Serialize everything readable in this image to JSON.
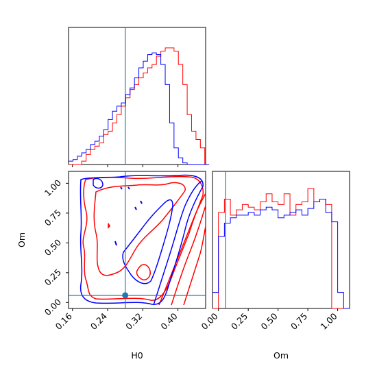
{
  "colors": {
    "series_a": "#ff0000",
    "series_b": "#0000ff",
    "truth": "#1f77b4",
    "axis": "#000000"
  },
  "chart_data": [
    {
      "type": "histogram",
      "panel": "H0 marginal",
      "x": [
        0.151,
        0.161,
        0.171,
        0.181,
        0.191,
        0.201,
        0.211,
        0.221,
        0.231,
        0.241,
        0.251,
        0.261,
        0.271,
        0.281,
        0.291,
        0.301,
        0.311,
        0.321,
        0.331,
        0.341,
        0.351,
        0.361,
        0.371,
        0.381,
        0.391,
        0.401,
        0.411,
        0.421,
        0.431,
        0.441,
        0.451,
        0.461
      ],
      "series": [
        {
          "values": [
            0,
            0,
            0,
            2,
            6,
            9,
            11,
            13,
            18,
            20,
            25,
            30,
            35,
            40,
            45,
            48,
            52,
            55,
            58,
            60,
            65,
            68,
            70,
            70,
            68,
            60,
            48,
            30,
            20,
            15,
            10,
            0
          ]
        },
        {
          "values": [
            2,
            3,
            5,
            7,
            9,
            12,
            14,
            17,
            21,
            27,
            32,
            35,
            37,
            42,
            46,
            52,
            58,
            62,
            66,
            67,
            66,
            60,
            48,
            25,
            10,
            4,
            1,
            0,
            0,
            0,
            0,
            0
          ]
        }
      ],
      "truth_x": 0.28,
      "xlim": [
        0.151,
        0.463
      ]
    },
    {
      "type": "contour",
      "panel": "H0 vs Om",
      "xlabel": "H0",
      "ylabel": "Om",
      "xticks": [
        "0.16",
        "0.24",
        "0.32",
        "0.40"
      ],
      "yticks": [
        "0.00",
        "0.25",
        "0.50",
        "0.75",
        "1.00"
      ],
      "xlim": [
        0.151,
        0.463
      ],
      "ylim": [
        -0.05,
        1.1
      ],
      "truth": {
        "x": 0.28,
        "y": 0.06
      }
    },
    {
      "type": "histogram",
      "panel": "Om marginal",
      "xlabel": "Om",
      "xticks": [
        "0.00",
        "0.25",
        "0.50",
        "0.75",
        "1.00"
      ],
      "x": [
        -0.05,
        0.0,
        0.05,
        0.1,
        0.15,
        0.2,
        0.25,
        0.3,
        0.35,
        0.4,
        0.45,
        0.5,
        0.55,
        0.6,
        0.65,
        0.7,
        0.75,
        0.8,
        0.85,
        0.9,
        0.95,
        1.0,
        1.05
      ],
      "series": [
        {
          "values": [
            0,
            72,
            82,
            70,
            74,
            78,
            76,
            74,
            80,
            86,
            80,
            78,
            86,
            70,
            78,
            80,
            90,
            80,
            82,
            78,
            0,
            0,
            0
          ]
        },
        {
          "values": [
            12,
            54,
            64,
            68,
            70,
            70,
            72,
            70,
            74,
            76,
            74,
            68,
            70,
            72,
            74,
            70,
            75,
            80,
            82,
            72,
            65,
            12,
            0
          ]
        }
      ],
      "truth_x": 0.06,
      "xlim": [
        -0.05,
        1.1
      ]
    }
  ]
}
